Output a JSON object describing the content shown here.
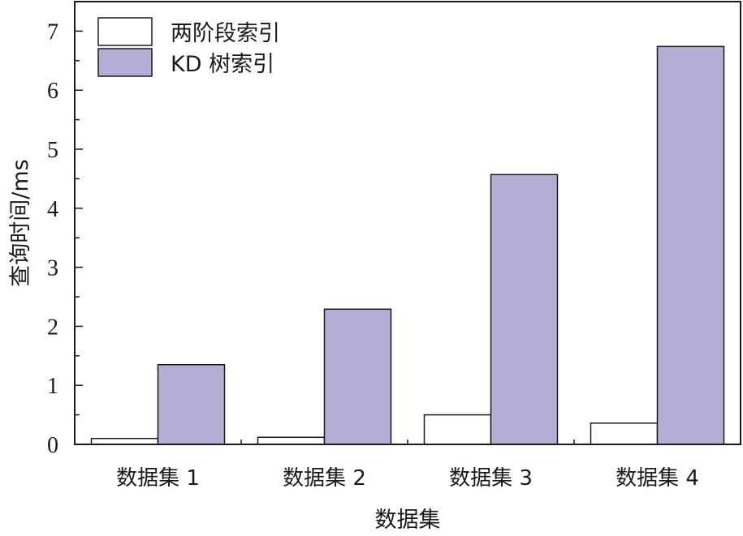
{
  "chart_data": {
    "type": "bar",
    "categories": [
      "数据集 1",
      "数据集 2",
      "数据集 3",
      "数据集 4"
    ],
    "series": [
      {
        "name": "两阶段索引",
        "values": [
          0.1,
          0.12,
          0.5,
          0.36
        ],
        "color": "#ffffff"
      },
      {
        "name": "KD 树索引",
        "values": [
          1.35,
          2.29,
          4.57,
          6.74
        ],
        "color": "#b3aed6"
      }
    ],
    "xlabel": "数据集",
    "ylabel": "查询时间/ms",
    "ylim": [
      0,
      7.5
    ],
    "yticks": [
      0,
      1,
      2,
      3,
      4,
      5,
      6,
      7
    ],
    "grid": false,
    "legend_position": "top-left"
  }
}
